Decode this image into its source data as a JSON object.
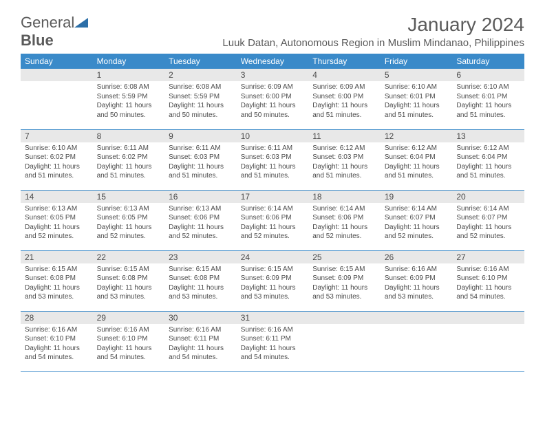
{
  "brand": {
    "part1": "General",
    "part2": "Blue"
  },
  "title": "January 2024",
  "location": "Luuk Datan, Autonomous Region in Muslim Mindanao, Philippines",
  "colors": {
    "header_bg": "#3a8ac9",
    "header_text": "#ffffff",
    "daynum_bg": "#e8e8e8",
    "text": "#4a4a4a",
    "rule": "#3a8ac9",
    "page_bg": "#ffffff",
    "logo_blue": "#2c6fa8"
  },
  "weekdays": [
    "Sunday",
    "Monday",
    "Tuesday",
    "Wednesday",
    "Thursday",
    "Friday",
    "Saturday"
  ],
  "weeks": [
    [
      null,
      {
        "n": "1",
        "sr": "6:08 AM",
        "ss": "5:59 PM",
        "dl": "11 hours and 50 minutes."
      },
      {
        "n": "2",
        "sr": "6:08 AM",
        "ss": "5:59 PM",
        "dl": "11 hours and 50 minutes."
      },
      {
        "n": "3",
        "sr": "6:09 AM",
        "ss": "6:00 PM",
        "dl": "11 hours and 50 minutes."
      },
      {
        "n": "4",
        "sr": "6:09 AM",
        "ss": "6:00 PM",
        "dl": "11 hours and 51 minutes."
      },
      {
        "n": "5",
        "sr": "6:10 AM",
        "ss": "6:01 PM",
        "dl": "11 hours and 51 minutes."
      },
      {
        "n": "6",
        "sr": "6:10 AM",
        "ss": "6:01 PM",
        "dl": "11 hours and 51 minutes."
      }
    ],
    [
      {
        "n": "7",
        "sr": "6:10 AM",
        "ss": "6:02 PM",
        "dl": "11 hours and 51 minutes."
      },
      {
        "n": "8",
        "sr": "6:11 AM",
        "ss": "6:02 PM",
        "dl": "11 hours and 51 minutes."
      },
      {
        "n": "9",
        "sr": "6:11 AM",
        "ss": "6:03 PM",
        "dl": "11 hours and 51 minutes."
      },
      {
        "n": "10",
        "sr": "6:11 AM",
        "ss": "6:03 PM",
        "dl": "11 hours and 51 minutes."
      },
      {
        "n": "11",
        "sr": "6:12 AM",
        "ss": "6:03 PM",
        "dl": "11 hours and 51 minutes."
      },
      {
        "n": "12",
        "sr": "6:12 AM",
        "ss": "6:04 PM",
        "dl": "11 hours and 51 minutes."
      },
      {
        "n": "13",
        "sr": "6:12 AM",
        "ss": "6:04 PM",
        "dl": "11 hours and 51 minutes."
      }
    ],
    [
      {
        "n": "14",
        "sr": "6:13 AM",
        "ss": "6:05 PM",
        "dl": "11 hours and 52 minutes."
      },
      {
        "n": "15",
        "sr": "6:13 AM",
        "ss": "6:05 PM",
        "dl": "11 hours and 52 minutes."
      },
      {
        "n": "16",
        "sr": "6:13 AM",
        "ss": "6:06 PM",
        "dl": "11 hours and 52 minutes."
      },
      {
        "n": "17",
        "sr": "6:14 AM",
        "ss": "6:06 PM",
        "dl": "11 hours and 52 minutes."
      },
      {
        "n": "18",
        "sr": "6:14 AM",
        "ss": "6:06 PM",
        "dl": "11 hours and 52 minutes."
      },
      {
        "n": "19",
        "sr": "6:14 AM",
        "ss": "6:07 PM",
        "dl": "11 hours and 52 minutes."
      },
      {
        "n": "20",
        "sr": "6:14 AM",
        "ss": "6:07 PM",
        "dl": "11 hours and 52 minutes."
      }
    ],
    [
      {
        "n": "21",
        "sr": "6:15 AM",
        "ss": "6:08 PM",
        "dl": "11 hours and 53 minutes."
      },
      {
        "n": "22",
        "sr": "6:15 AM",
        "ss": "6:08 PM",
        "dl": "11 hours and 53 minutes."
      },
      {
        "n": "23",
        "sr": "6:15 AM",
        "ss": "6:08 PM",
        "dl": "11 hours and 53 minutes."
      },
      {
        "n": "24",
        "sr": "6:15 AM",
        "ss": "6:09 PM",
        "dl": "11 hours and 53 minutes."
      },
      {
        "n": "25",
        "sr": "6:15 AM",
        "ss": "6:09 PM",
        "dl": "11 hours and 53 minutes."
      },
      {
        "n": "26",
        "sr": "6:16 AM",
        "ss": "6:09 PM",
        "dl": "11 hours and 53 minutes."
      },
      {
        "n": "27",
        "sr": "6:16 AM",
        "ss": "6:10 PM",
        "dl": "11 hours and 54 minutes."
      }
    ],
    [
      {
        "n": "28",
        "sr": "6:16 AM",
        "ss": "6:10 PM",
        "dl": "11 hours and 54 minutes."
      },
      {
        "n": "29",
        "sr": "6:16 AM",
        "ss": "6:10 PM",
        "dl": "11 hours and 54 minutes."
      },
      {
        "n": "30",
        "sr": "6:16 AM",
        "ss": "6:11 PM",
        "dl": "11 hours and 54 minutes."
      },
      {
        "n": "31",
        "sr": "6:16 AM",
        "ss": "6:11 PM",
        "dl": "11 hours and 54 minutes."
      },
      null,
      null,
      null
    ]
  ],
  "labels": {
    "sunrise": "Sunrise:",
    "sunset": "Sunset:",
    "daylight": "Daylight:"
  }
}
